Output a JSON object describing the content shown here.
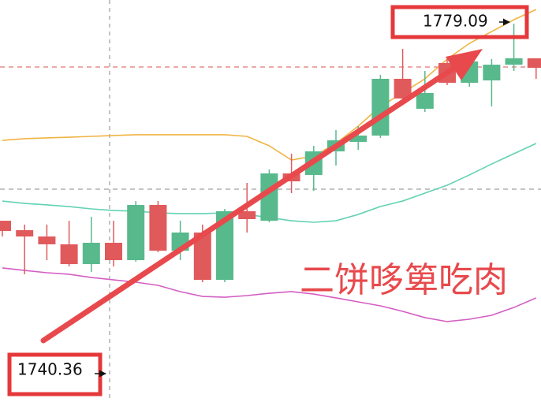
{
  "chart_data": {
    "type": "candlestick",
    "categories": [
      null,
      null,
      null,
      null,
      null,
      null,
      null,
      null,
      null,
      null,
      null,
      null,
      null,
      null,
      null,
      null,
      null,
      null,
      null,
      null,
      null,
      null,
      null,
      null,
      null
    ],
    "open": [
      1757.0,
      1755.95,
      1755.25,
      1754.38,
      1752.18,
      1754.55,
      1752.62,
      1758.76,
      1753.67,
      1755.69,
      1750.43,
      1758.06,
      1757.0,
      1762.26,
      1762.09,
      1764.71,
      1765.77,
      1766.47,
      1772.78,
      1769.45,
      1774.53,
      1772.34,
      1772.6,
      1774.35,
      1775.06
    ],
    "high": [
      1757.0,
      1756.57,
      1756.57,
      1757.0,
      1757.44,
      1757.0,
      1759.19,
      1759.19,
      1757.0,
      1756.57,
      1758.32,
      1761.21,
      1762.7,
      1764.45,
      1765.33,
      1767.08,
      1767.52,
      1773.22,
      1776.11,
      1773.65,
      1774.97,
      1775.41,
      1774.97,
      1778.91,
      1775.06
    ],
    "low": [
      1755.25,
      1751.05,
      1752.62,
      1751.92,
      1751.31,
      1751.92,
      1752.45,
      1753.5,
      1752.62,
      1750.17,
      1750.17,
      1755.69,
      1756.83,
      1760.07,
      1760.33,
      1763.14,
      1764.89,
      1766.21,
      1770.15,
      1769.1,
      1772.08,
      1771.9,
      1769.71,
      1773.65,
      1772.78
    ],
    "close": [
      1755.86,
      1755.25,
      1754.38,
      1752.18,
      1754.55,
      1752.62,
      1758.76,
      1753.67,
      1755.69,
      1750.43,
      1758.06,
      1757.18,
      1762.26,
      1761.38,
      1764.71,
      1765.94,
      1766.47,
      1772.78,
      1770.59,
      1771.2,
      1772.34,
      1774.71,
      1774.35,
      1775.06,
      1774.0
    ],
    "up_color": "#58b98c",
    "down_color": "#e05a5c",
    "lines": [
      {
        "color": "#f0b444",
        "values": [
          1765.94,
          1766.12,
          1766.21,
          1766.29,
          1766.38,
          1766.47,
          1766.56,
          1766.56,
          1766.56,
          1766.56,
          1766.56,
          1766.38,
          1765.33,
          1763.75,
          1764.19,
          1765.59,
          1767.52,
          1769.71,
          1771.2,
          1772.78,
          1774.97,
          1776.72,
          1778.03,
          1779.35,
          1780.49
        ]
      },
      {
        "color": "#62d2b3",
        "values": [
          1759.19,
          1758.93,
          1758.76,
          1758.58,
          1758.32,
          1758.14,
          1758.06,
          1757.88,
          1757.79,
          1757.79,
          1757.88,
          1757.7,
          1757.35,
          1757.0,
          1756.83,
          1757.0,
          1757.7,
          1758.58,
          1759.19,
          1760.07,
          1760.95,
          1762.09,
          1763.31,
          1764.45,
          1765.59
        ]
      },
      {
        "color": "#d45ec4",
        "values": [
          1751.75,
          1751.48,
          1751.22,
          1751.05,
          1750.69,
          1750.43,
          1750.17,
          1749.82,
          1749.12,
          1748.59,
          1748.5,
          1748.68,
          1748.94,
          1749.12,
          1748.85,
          1748.42,
          1747.98,
          1747.54,
          1746.93,
          1746.23,
          1745.79,
          1746.05,
          1746.49,
          1747.36,
          1748.42
        ]
      }
    ],
    "ylim": [
      1736.85,
      1781.54
    ],
    "price_labels": [
      1740.36,
      1779.09
    ],
    "annotation": "二饼哆箄吃肉"
  }
}
